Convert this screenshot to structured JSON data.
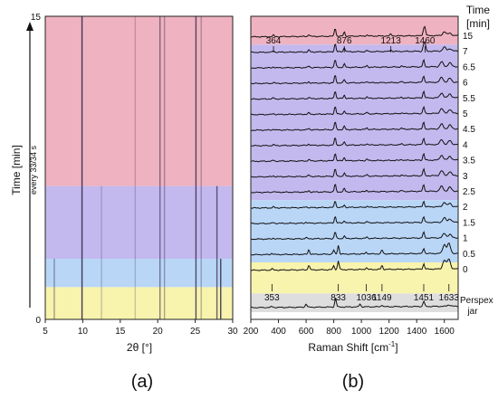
{
  "panel_a": {
    "label": "(a)",
    "chart_data": {
      "type": "heatmap",
      "xlabel": "2θ [°]",
      "ylabel": "Time [min]",
      "ylabel_note": "every 33/34 s",
      "xlim": [
        5,
        30
      ],
      "ylim": [
        0,
        15
      ],
      "x_ticks": [
        "5",
        "10",
        "15",
        "20",
        "25",
        "30"
      ],
      "y_ticks": [
        "0",
        "15"
      ],
      "bands": [
        {
          "from": 0,
          "to": 1.6,
          "color": "#f8f3ad"
        },
        {
          "from": 1.6,
          "to": 3.0,
          "color": "#b9d6f7"
        },
        {
          "from": 3.0,
          "to": 6.6,
          "color": "#c3b9ee"
        },
        {
          "from": 6.6,
          "to": 15,
          "color": "#efb2c0"
        }
      ],
      "lines": [
        {
          "x": 6.2,
          "from": 0,
          "to": 3.0,
          "strength": 0.45
        },
        {
          "x": 9.9,
          "from": 0,
          "to": 15,
          "strength": 0.95
        },
        {
          "x": 12.5,
          "from": 0,
          "to": 6.6,
          "strength": 0.25
        },
        {
          "x": 17.0,
          "from": 0,
          "to": 15,
          "strength": 0.25
        },
        {
          "x": 20.3,
          "from": 0,
          "to": 15,
          "strength": 0.6
        },
        {
          "x": 20.9,
          "from": 0,
          "to": 15,
          "strength": 0.4
        },
        {
          "x": 25.1,
          "from": 0,
          "to": 15,
          "strength": 0.85
        },
        {
          "x": 25.8,
          "from": 0,
          "to": 15,
          "strength": 0.35
        },
        {
          "x": 27.9,
          "from": 0,
          "to": 6.6,
          "strength": 0.75
        },
        {
          "x": 28.4,
          "from": 0,
          "to": 3.0,
          "strength": 0.9
        }
      ]
    }
  },
  "panel_b": {
    "label": "(b)",
    "chart_data": {
      "type": "line",
      "xlabel_main": "Raman Shift [cm",
      "xlabel_sup": "-1",
      "xlabel_end": "]",
      "xlim": [
        200,
        1700
      ],
      "x_ticks": [
        "200",
        "400",
        "600",
        "800",
        "1000",
        "1200",
        "1400",
        "1600"
      ],
      "time_header": [
        "Time",
        "[min]"
      ],
      "perspex_label": [
        "Perspex",
        "jar"
      ],
      "bands": [
        {
          "top_row": 0,
          "bottom_row": 1,
          "color": "#efb2c0"
        },
        {
          "top_row": 1,
          "bottom_row": 11,
          "color": "#c3b9ee"
        },
        {
          "top_row": 11,
          "bottom_row": 15,
          "color": "#b9d6f7"
        },
        {
          "top_row": 15,
          "bottom_row": 17,
          "color": "#f8f3ad"
        },
        {
          "top_row": 17,
          "bottom_row": 18.2,
          "color": "#dedede"
        }
      ],
      "spectra": [
        {
          "time": "15",
          "family": "product"
        },
        {
          "time": "7",
          "family": "product"
        },
        {
          "time": "6.5",
          "family": "mid"
        },
        {
          "time": "6",
          "family": "mid"
        },
        {
          "time": "5.5",
          "family": "mid"
        },
        {
          "time": "5",
          "family": "mid"
        },
        {
          "time": "4.5",
          "family": "mid"
        },
        {
          "time": "4",
          "family": "mid"
        },
        {
          "time": "3.5",
          "family": "mid"
        },
        {
          "time": "3",
          "family": "mid"
        },
        {
          "time": "2.5",
          "family": "mid"
        },
        {
          "time": "2",
          "family": "early"
        },
        {
          "time": "1.5",
          "family": "early"
        },
        {
          "time": "1",
          "family": "early"
        },
        {
          "time": "0.5",
          "family": "start"
        },
        {
          "time": "0",
          "family": "start"
        },
        {
          "time": "",
          "family": "perspex"
        }
      ],
      "families": {
        "product": [
          [
            364,
            0.15
          ],
          [
            620,
            0.2
          ],
          [
            810,
            0.85
          ],
          [
            876,
            0.45
          ],
          [
            1040,
            0.12
          ],
          [
            1213,
            0.18
          ],
          [
            1450,
            0.6
          ],
          [
            1460,
            0.75
          ],
          [
            1600,
            0.4
          ],
          [
            1640,
            0.25
          ]
        ],
        "mid": [
          [
            364,
            0.1
          ],
          [
            620,
            0.15
          ],
          [
            810,
            0.8
          ],
          [
            876,
            0.35
          ],
          [
            1040,
            0.15
          ],
          [
            1290,
            0.1
          ],
          [
            1450,
            0.7
          ],
          [
            1580,
            0.5
          ],
          [
            1640,
            0.4
          ]
        ],
        "early": [
          [
            364,
            0.1
          ],
          [
            600,
            0.12
          ],
          [
            810,
            0.7
          ],
          [
            876,
            0.25
          ],
          [
            1040,
            0.12
          ],
          [
            1450,
            0.6
          ],
          [
            1600,
            0.45
          ],
          [
            1640,
            0.35
          ]
        ],
        "start": [
          [
            353,
            0.15
          ],
          [
            620,
            0.5
          ],
          [
            800,
            0.4
          ],
          [
            833,
            0.9
          ],
          [
            1036,
            0.2
          ],
          [
            1149,
            0.4
          ],
          [
            1451,
            0.55
          ],
          [
            1600,
            0.9
          ],
          [
            1633,
            1.0
          ]
        ],
        "perspex": [
          [
            353,
            0.1
          ],
          [
            600,
            0.35
          ],
          [
            813,
            0.9
          ],
          [
            990,
            0.3
          ],
          [
            1149,
            0.2
          ],
          [
            1451,
            0.55
          ],
          [
            1633,
            0.15
          ]
        ]
      },
      "top_annotations": [
        {
          "x": 364,
          "label": "364"
        },
        {
          "x": 876,
          "label": "876"
        },
        {
          "x": 1213,
          "label": "1213"
        },
        {
          "x": 1460,
          "label": "1460"
        }
      ],
      "bottom_annotations": [
        {
          "x": 353,
          "label": "353"
        },
        {
          "x": 833,
          "label": "833"
        },
        {
          "x": 1036,
          "label": "1036"
        },
        {
          "x": 1149,
          "label": "1149"
        },
        {
          "x": 1451,
          "label": "1451"
        },
        {
          "x": 1633,
          "label": "1633"
        }
      ]
    }
  }
}
